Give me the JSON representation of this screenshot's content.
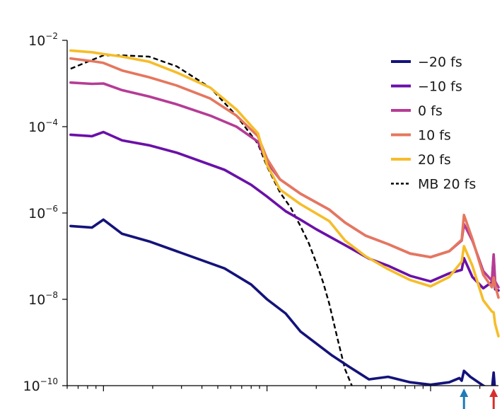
{
  "chart_data": {
    "type": "line",
    "title": "",
    "xlabel": "",
    "ylabel": "",
    "x_scale": "log",
    "y_scale": "log",
    "xlim": [
      0.6,
      260
    ],
    "ylim": [
      1e-10,
      0.01
    ],
    "y_ticks": [
      {
        "base": "10",
        "exp": "−10",
        "value": 1e-10
      },
      {
        "base": "10",
        "exp": "−8",
        "value": 1e-08
      },
      {
        "base": "10",
        "exp": "−6",
        "value": 1e-06
      },
      {
        "base": "10",
        "exp": "−4",
        "value": 0.0001
      },
      {
        "base": "10",
        "exp": "−2",
        "value": 0.01
      }
    ],
    "x_major_ticks": [
      1,
      10,
      100
    ],
    "legend_position": "top-right",
    "annotations": [
      {
        "name": "blue-arrow",
        "x": 160,
        "color": "#1f7ab8"
      },
      {
        "name": "red-arrow",
        "x": 243,
        "color": "#d62e2e"
      }
    ],
    "series": [
      {
        "name": "−20 fs",
        "color": "#14137a",
        "dashed": false,
        "points": [
          [
            0.63,
            5e-07
          ],
          [
            0.85,
            4.6e-07
          ],
          [
            1.0,
            7e-07
          ],
          [
            1.3,
            3.3e-07
          ],
          [
            1.9,
            2.2e-07
          ],
          [
            2.8,
            1.3e-07
          ],
          [
            5.5,
            5.2e-08
          ],
          [
            8,
            2.2e-08
          ],
          [
            10,
            1e-08
          ],
          [
            13,
            4.7e-09
          ],
          [
            16,
            1.8e-09
          ],
          [
            25,
            5e-10
          ],
          [
            32,
            2.7e-10
          ],
          [
            42,
            1.4e-10
          ],
          [
            55,
            1.6e-10
          ],
          [
            75,
            1.2e-10
          ],
          [
            100,
            1.05e-10
          ],
          [
            130,
            1.2e-10
          ],
          [
            150,
            1.5e-10
          ],
          [
            155,
            1.3e-10
          ],
          [
            160,
            2.2e-10
          ],
          [
            175,
            1.6e-10
          ],
          [
            210,
            1e-10
          ],
          [
            237,
            8e-11
          ],
          [
            243,
            2e-10
          ],
          [
            248,
            7e-11
          ]
        ]
      },
      {
        "name": "−10 fs",
        "color": "#6a10a8",
        "dashed": false,
        "points": [
          [
            0.63,
            6.5e-05
          ],
          [
            0.85,
            6e-05
          ],
          [
            1.0,
            7.5e-05
          ],
          [
            1.3,
            4.8e-05
          ],
          [
            1.9,
            3.7e-05
          ],
          [
            2.8,
            2.5e-05
          ],
          [
            5.5,
            1e-05
          ],
          [
            8,
            4.5e-06
          ],
          [
            10,
            2.4e-06
          ],
          [
            13,
            1.1e-06
          ],
          [
            16,
            7e-07
          ],
          [
            20,
            4.2e-07
          ],
          [
            30,
            1.8e-07
          ],
          [
            42,
            8.8e-08
          ],
          [
            55,
            6e-08
          ],
          [
            75,
            3.5e-08
          ],
          [
            100,
            2.6e-08
          ],
          [
            130,
            4e-08
          ],
          [
            155,
            4.8e-08
          ],
          [
            160,
            9e-08
          ],
          [
            180,
            3.3e-08
          ],
          [
            210,
            1.8e-08
          ],
          [
            237,
            2.5e-08
          ],
          [
            243,
            1e-07
          ],
          [
            248,
            1.7e-08
          ],
          [
            260,
            1.6e-08
          ]
        ]
      },
      {
        "name": "0 fs",
        "color": "#b53c95",
        "dashed": false,
        "points": [
          [
            0.63,
            0.00105
          ],
          [
            0.85,
            0.00098
          ],
          [
            1.0,
            0.001
          ],
          [
            1.3,
            0.0007
          ],
          [
            1.9,
            0.0005
          ],
          [
            2.8,
            0.00033
          ],
          [
            4.5,
            0.00018
          ],
          [
            6.5,
            0.0001
          ],
          [
            8.8,
            4.5e-05
          ],
          [
            10,
            1.5e-05
          ],
          [
            12,
            6e-06
          ],
          [
            16,
            2.8e-06
          ],
          [
            24,
            1.2e-06
          ],
          [
            30,
            6e-07
          ],
          [
            40,
            3e-07
          ],
          [
            55,
            1.9e-07
          ],
          [
            75,
            1.15e-07
          ],
          [
            100,
            9.5e-08
          ],
          [
            130,
            1.3e-07
          ],
          [
            155,
            2.3e-07
          ],
          [
            160,
            5.5e-07
          ],
          [
            180,
            2.3e-07
          ],
          [
            210,
            4.5e-08
          ],
          [
            237,
            2.7e-08
          ],
          [
            243,
            1.1e-07
          ],
          [
            248,
            2.6e-08
          ],
          [
            260,
            1.9e-08
          ]
        ]
      },
      {
        "name": "10 fs",
        "color": "#e5775e",
        "dashed": false,
        "points": [
          [
            0.63,
            0.0038
          ],
          [
            0.85,
            0.0033
          ],
          [
            1.0,
            0.003
          ],
          [
            1.3,
            0.002
          ],
          [
            1.9,
            0.0014
          ],
          [
            2.8,
            0.0009
          ],
          [
            4.5,
            0.00045
          ],
          [
            6.5,
            0.00018
          ],
          [
            8.8,
            6e-05
          ],
          [
            10,
            1.8e-05
          ],
          [
            12,
            6e-06
          ],
          [
            16,
            2.8e-06
          ],
          [
            24,
            1.2e-06
          ],
          [
            30,
            6e-07
          ],
          [
            40,
            3e-07
          ],
          [
            55,
            1.9e-07
          ],
          [
            75,
            1.15e-07
          ],
          [
            100,
            9.5e-08
          ],
          [
            130,
            1.3e-07
          ],
          [
            155,
            2.4e-07
          ],
          [
            160,
            9e-07
          ],
          [
            180,
            2.5e-07
          ],
          [
            210,
            3.7e-08
          ],
          [
            237,
            1.9e-08
          ],
          [
            243,
            3.2e-08
          ],
          [
            248,
            2.1e-08
          ],
          [
            260,
            1.1e-08
          ]
        ]
      },
      {
        "name": "20 fs",
        "color": "#f6bd2a",
        "dashed": false,
        "points": [
          [
            0.63,
            0.0058
          ],
          [
            0.85,
            0.0053
          ],
          [
            1.0,
            0.0048
          ],
          [
            1.3,
            0.0042
          ],
          [
            1.9,
            0.0032
          ],
          [
            2.8,
            0.0018
          ],
          [
            4.5,
            0.0008
          ],
          [
            6.5,
            0.00025
          ],
          [
            8.8,
            7e-05
          ],
          [
            10,
            1.3e-05
          ],
          [
            12,
            3.5e-06
          ],
          [
            16,
            1.6e-06
          ],
          [
            24,
            6.5e-07
          ],
          [
            30,
            2.3e-07
          ],
          [
            40,
            1e-07
          ],
          [
            55,
            5e-08
          ],
          [
            75,
            2.8e-08
          ],
          [
            100,
            2e-08
          ],
          [
            130,
            3.3e-08
          ],
          [
            155,
            7.5e-08
          ],
          [
            160,
            1.7e-07
          ],
          [
            180,
            6e-08
          ],
          [
            210,
            9.5e-09
          ],
          [
            237,
            5.2e-09
          ],
          [
            243,
            5e-09
          ],
          [
            248,
            2.7e-09
          ],
          [
            260,
            1.4e-09
          ]
        ]
      },
      {
        "name": "MB 20 fs",
        "color": "#000000",
        "dashed": true,
        "points": [
          [
            0.63,
            0.0022
          ],
          [
            0.85,
            0.0035
          ],
          [
            1.0,
            0.0045
          ],
          [
            1.3,
            0.0045
          ],
          [
            1.9,
            0.0042
          ],
          [
            2.8,
            0.0025
          ],
          [
            4.5,
            0.0008
          ],
          [
            6.5,
            0.00018
          ],
          [
            8.8,
            4e-05
          ],
          [
            10,
            1.2e-05
          ],
          [
            12,
            3e-06
          ],
          [
            14,
            1.3e-06
          ],
          [
            16,
            5e-07
          ],
          [
            18,
            2e-07
          ],
          [
            20,
            7e-08
          ],
          [
            22,
            2.5e-08
          ],
          [
            24,
            8e-09
          ],
          [
            27,
            1.2e-09
          ],
          [
            30,
            2.4e-10
          ],
          [
            33,
            1e-10
          ]
        ]
      }
    ]
  }
}
